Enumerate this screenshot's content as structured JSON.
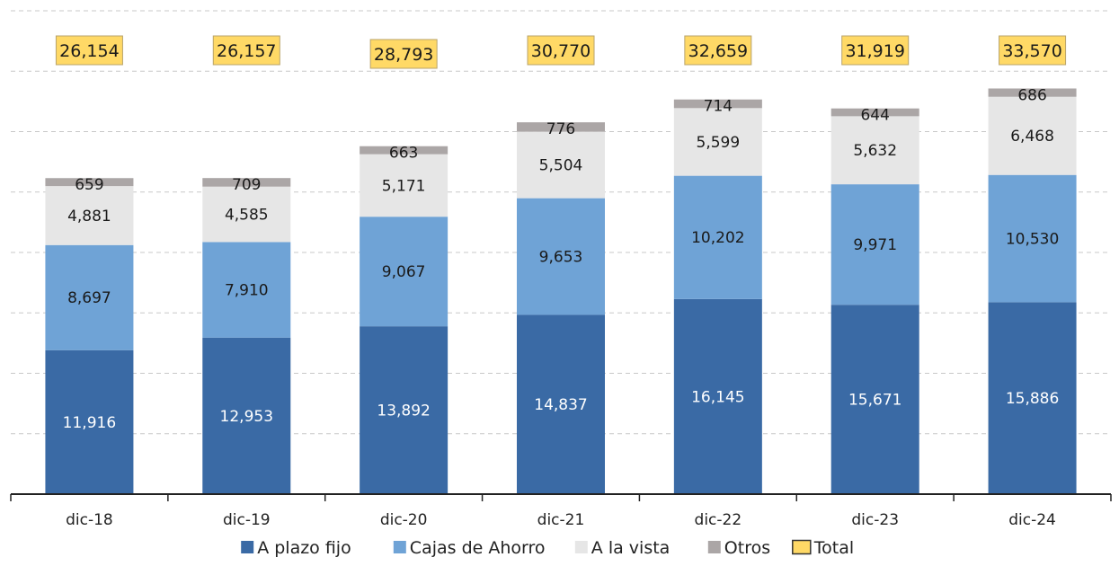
{
  "chart_data": {
    "type": "bar",
    "stacked": true,
    "categories": [
      "dic-18",
      "dic-19",
      "dic-20",
      "dic-21",
      "dic-22",
      "dic-23",
      "dic-24"
    ],
    "series": [
      {
        "name": "A plazo fijo",
        "color": "#3A6AA5",
        "label_color": "#ffffff",
        "values": [
          11916,
          12953,
          13892,
          14837,
          16145,
          15671,
          15886
        ],
        "labels": [
          "11,916",
          "12,953",
          "13,892",
          "14,837",
          "16,145",
          "15,671",
          "15,886"
        ]
      },
      {
        "name": "Cajas de Ahorro",
        "color": "#6FA3D6",
        "label_color": "#1a1a1a",
        "values": [
          8697,
          7910,
          9067,
          9653,
          10202,
          9971,
          10530
        ],
        "labels": [
          "8,697",
          "7,910",
          "9,067",
          "9,653",
          "10,202",
          "9,971",
          "10,530"
        ]
      },
      {
        "name": "A la vista",
        "color": "#E6E6E6",
        "label_color": "#1a1a1a",
        "values": [
          4881,
          4585,
          5171,
          5504,
          5599,
          5632,
          6468
        ],
        "labels": [
          "4,881",
          "4,585",
          "5,171",
          "5,504",
          "5,599",
          "5,632",
          "6,468"
        ]
      },
      {
        "name": "Otros",
        "color": "#ABA6A6",
        "label_color": "#1a1a1a",
        "values": [
          659,
          709,
          663,
          776,
          714,
          644,
          686
        ],
        "labels": [
          "659",
          "709",
          "663",
          "776",
          "714",
          "644",
          "686"
        ]
      }
    ],
    "total": {
      "name": "Total",
      "fill": "#FFD966",
      "border": "#B8A36A",
      "values": [
        26154,
        26157,
        28793,
        30770,
        32659,
        31919,
        33570
      ],
      "labels": [
        "26,154",
        "26,157",
        "28,793",
        "30,770",
        "32,659",
        "31,919",
        "33,570"
      ]
    },
    "ylim": [
      0,
      40000
    ],
    "grid": true,
    "legend_position": "bottom"
  }
}
